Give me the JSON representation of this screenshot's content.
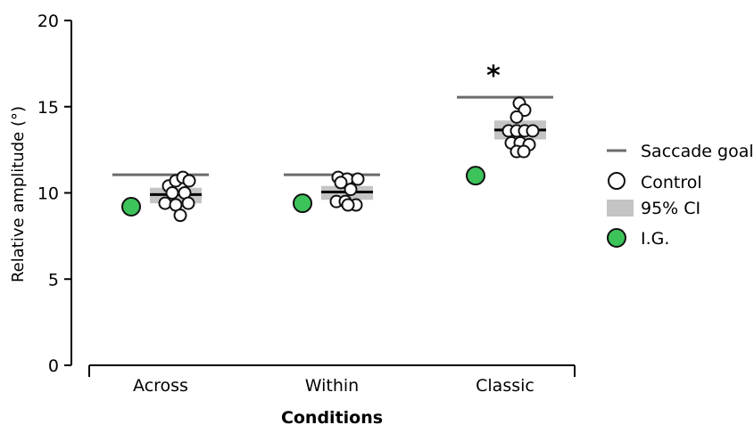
{
  "chart_data": {
    "type": "scatter",
    "ylabel": "Relative amplitude (°)",
    "xlabel": "Conditions",
    "ylim": [
      0,
      20
    ],
    "yticks": [
      "0",
      "5",
      "10",
      "15",
      "20"
    ],
    "categories": [
      "Across",
      "Within",
      "Classic"
    ],
    "saccade_goal": [
      11.05,
      11.05,
      15.55
    ],
    "ci95": [
      [
        9.4,
        10.3
      ],
      [
        9.6,
        10.4
      ],
      [
        13.1,
        14.2
      ]
    ],
    "control_mean": [
      9.9,
      10.05,
      13.65
    ],
    "control_points": [
      [
        {
          "o": -8,
          "y": 10.4
        },
        {
          "o": 0,
          "y": 10.7
        },
        {
          "o": 8,
          "y": 10.9
        },
        {
          "o": 15,
          "y": 10.7
        },
        {
          "o": -4,
          "y": 10.0
        },
        {
          "o": 10,
          "y": 10.0
        },
        {
          "o": -12,
          "y": 9.4
        },
        {
          "o": 0,
          "y": 9.3
        },
        {
          "o": 14,
          "y": 9.4
        },
        {
          "o": 5,
          "y": 8.7
        }
      ],
      [
        {
          "o": -10,
          "y": 10.9
        },
        {
          "o": 0,
          "y": 10.8
        },
        {
          "o": 12,
          "y": 10.8
        },
        {
          "o": -7,
          "y": 10.6
        },
        {
          "o": 4,
          "y": 10.2
        },
        {
          "o": -12,
          "y": 9.5
        },
        {
          "o": -2,
          "y": 9.5
        },
        {
          "o": 10,
          "y": 9.3
        },
        {
          "o": 1,
          "y": 9.3
        }
      ],
      [
        {
          "o": -1,
          "y": 15.2
        },
        {
          "o": 5,
          "y": 14.8
        },
        {
          "o": -4,
          "y": 14.4
        },
        {
          "o": -13,
          "y": 13.6
        },
        {
          "o": -4,
          "y": 13.6
        },
        {
          "o": 5,
          "y": 13.6
        },
        {
          "o": 14,
          "y": 13.6
        },
        {
          "o": -10,
          "y": 12.9
        },
        {
          "o": 0,
          "y": 12.9
        },
        {
          "o": 10,
          "y": 12.8
        },
        {
          "o": -4,
          "y": 12.4
        },
        {
          "o": 4,
          "y": 12.4
        }
      ]
    ],
    "ig_values": [
      9.2,
      9.4,
      11.0
    ],
    "annotation": "*",
    "legend": {
      "position": "right",
      "entries": [
        "Saccade goal",
        "Control",
        "95% CI",
        "I.G."
      ]
    },
    "colors": {
      "saccade_goal": "#6b6b6b",
      "ci": "#c4c4c4",
      "ig": "#3cc45a",
      "control_fill": "#ffffff",
      "marker_edge": "#111111"
    }
  }
}
